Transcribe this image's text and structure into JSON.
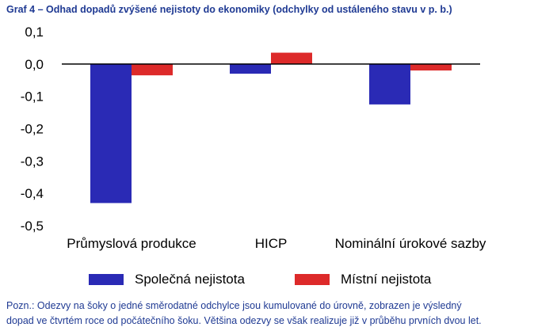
{
  "title": "Graf 4 – Odhad dopadů zvýšené nejistoty do ekonomiky (odchylky od ustáleného stavu v p. b.)",
  "note": {
    "line1": "Pozn.: Odezvy na šoky o jedné směrodatné odchylce jsou kumulované do úrovně, zobrazen je výsledný",
    "line2": "dopad ve čtvrtém roce od počátečního šoku. Většina odezvy se však realizuje již v průběhu prvních dvou let."
  },
  "colors": {
    "series1": "#2a2ab5",
    "series2": "#dd2a2a",
    "title": "#1f3a93"
  },
  "chart_data": {
    "type": "bar",
    "categories": [
      "Průmyslová produkce",
      "HICP",
      "Nominální úrokové sazby"
    ],
    "series": [
      {
        "name": "Společná nejistota",
        "values": [
          -0.43,
          -0.03,
          -0.125
        ]
      },
      {
        "name": "Místní nejistota",
        "values": [
          -0.035,
          0.035,
          -0.02
        ]
      }
    ],
    "ylim": [
      -0.5,
      0.1
    ],
    "yticks": [
      "0,1",
      "0,0",
      "-0,1",
      "-0,2",
      "-0,3",
      "-0,4",
      "-0,5"
    ],
    "ytick_values": [
      0.1,
      0.0,
      -0.1,
      -0.2,
      -0.3,
      -0.4,
      -0.5
    ],
    "grid": false,
    "legend": "bottom"
  }
}
